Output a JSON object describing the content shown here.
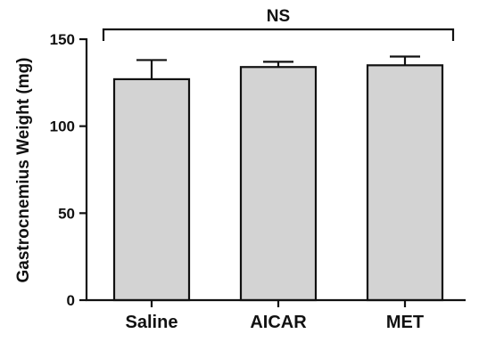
{
  "chart_data": {
    "type": "bar",
    "title": "",
    "xlabel": "",
    "ylabel": "Gastrocnemius Weight (mg)",
    "categories": [
      "Saline",
      "AICAR",
      "MET"
    ],
    "values": [
      127,
      134,
      135
    ],
    "errors_upper": [
      11,
      3,
      5
    ],
    "ylim": [
      0,
      150
    ],
    "yticks": [
      0,
      50,
      100,
      150
    ],
    "grid": false,
    "legend": "none",
    "bar_fill": "#d3d3d3",
    "bar_stroke": "#111111",
    "significance": {
      "label": "NS",
      "from_category": "Saline",
      "to_category": "MET"
    }
  }
}
